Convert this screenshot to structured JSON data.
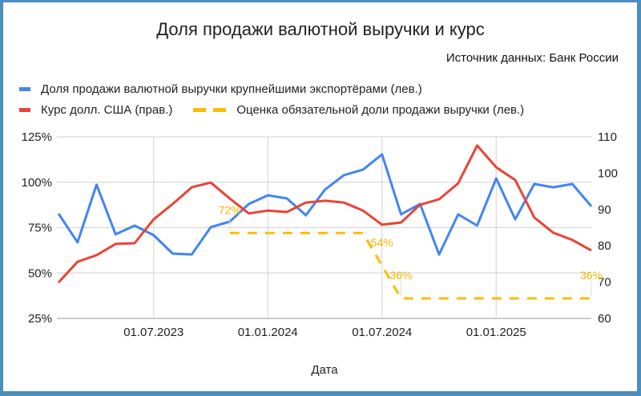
{
  "chart_data": {
    "type": "line",
    "title": "Доля продажи валютной выручки и курс",
    "subtitle": "Источник данных: Банк России",
    "xlabel": "Дата",
    "ylabel_left": "",
    "ylabel_right": "",
    "x": [
      "01.02.2023",
      "01.03.2023",
      "01.04.2023",
      "01.05.2023",
      "01.06.2023",
      "01.07.2023",
      "01.08.2023",
      "01.09.2023",
      "01.10.2023",
      "01.11.2023",
      "01.12.2023",
      "01.01.2024",
      "01.02.2024",
      "01.03.2024",
      "01.04.2024",
      "01.05.2024",
      "01.06.2024",
      "01.07.2024",
      "01.08.2024",
      "01.09.2024",
      "01.10.2024",
      "01.11.2024",
      "01.12.2024",
      "01.01.2025",
      "01.02.2025",
      "01.03.2025",
      "01.04.2025",
      "01.05.2025",
      "01.06.2025"
    ],
    "x_ticks": [
      "01.07.2023",
      "01.01.2024",
      "01.07.2024",
      "01.01.2025"
    ],
    "x_tick_indices": [
      5,
      11,
      17,
      23
    ],
    "y_left_ticks": [
      "125%",
      "100%",
      "75%",
      "50%",
      "25%"
    ],
    "y_left_values": [
      125,
      100,
      75,
      50,
      25
    ],
    "y_right_ticks": [
      "110",
      "100",
      "90",
      "80",
      "70",
      "60"
    ],
    "y_right_values": [
      110,
      100,
      90,
      80,
      70,
      60
    ],
    "ylim_left": [
      25,
      125
    ],
    "ylim_right": [
      60,
      110
    ],
    "grid": true,
    "legend_position": "top",
    "series": [
      {
        "name": "Доля продажи валютной выручки крупнейшими экспортёрами (лев.)",
        "axis": "left",
        "color": "#4285f4",
        "style": "solid",
        "values": [
          82.7,
          66.9,
          98.6,
          71.3,
          76.1,
          70.8,
          60.7,
          60.2,
          75.2,
          78.3,
          88.0,
          92.8,
          91.1,
          81.8,
          95.9,
          103.9,
          106.9,
          115.3,
          82.3,
          88.0,
          60.2,
          82.3,
          76.1,
          102.1,
          79.6,
          99.0,
          97.2,
          99.0,
          86.7
        ]
      },
      {
        "name": "Курс долл. США (прав.)",
        "axis": "right",
        "color": "#ea4335",
        "style": "solid",
        "values": [
          69.9,
          75.6,
          77.4,
          80.5,
          80.7,
          87.3,
          91.5,
          96.1,
          97.4,
          93.0,
          88.9,
          89.7,
          89.3,
          91.9,
          92.4,
          91.9,
          89.7,
          85.8,
          86.4,
          91.3,
          92.8,
          97.2,
          107.6,
          101.6,
          98.1,
          87.8,
          83.6,
          81.6,
          78.7
        ]
      },
      {
        "name": "Оценка обязательной доли продажи выручки (лев.)",
        "axis": "left",
        "color": "#fbbc04",
        "style": "dashed",
        "values": [
          null,
          null,
          null,
          null,
          null,
          null,
          null,
          null,
          null,
          72,
          72,
          72,
          72,
          72,
          72,
          72,
          72,
          54,
          36,
          36,
          36,
          36,
          36,
          36,
          36,
          36,
          36,
          36,
          36
        ]
      }
    ],
    "annotations": [
      {
        "series": 2,
        "index": 9,
        "label": "72%"
      },
      {
        "series": 2,
        "index": 17,
        "label": "54%"
      },
      {
        "series": 2,
        "index": 18,
        "label": "36%"
      },
      {
        "series": 2,
        "index": 28,
        "label": "36%"
      }
    ]
  },
  "legend": {
    "items": [
      {
        "label": "Доля продажи валютной выручки крупнейшими экспортёрами (лев.)",
        "color": "#4285f4"
      },
      {
        "label": "Курс долл. США (прав.)",
        "color": "#ea4335"
      },
      {
        "label": "Оценка обязательной доли продажи выручки (лев.)",
        "color": "#fbbc04"
      }
    ]
  }
}
